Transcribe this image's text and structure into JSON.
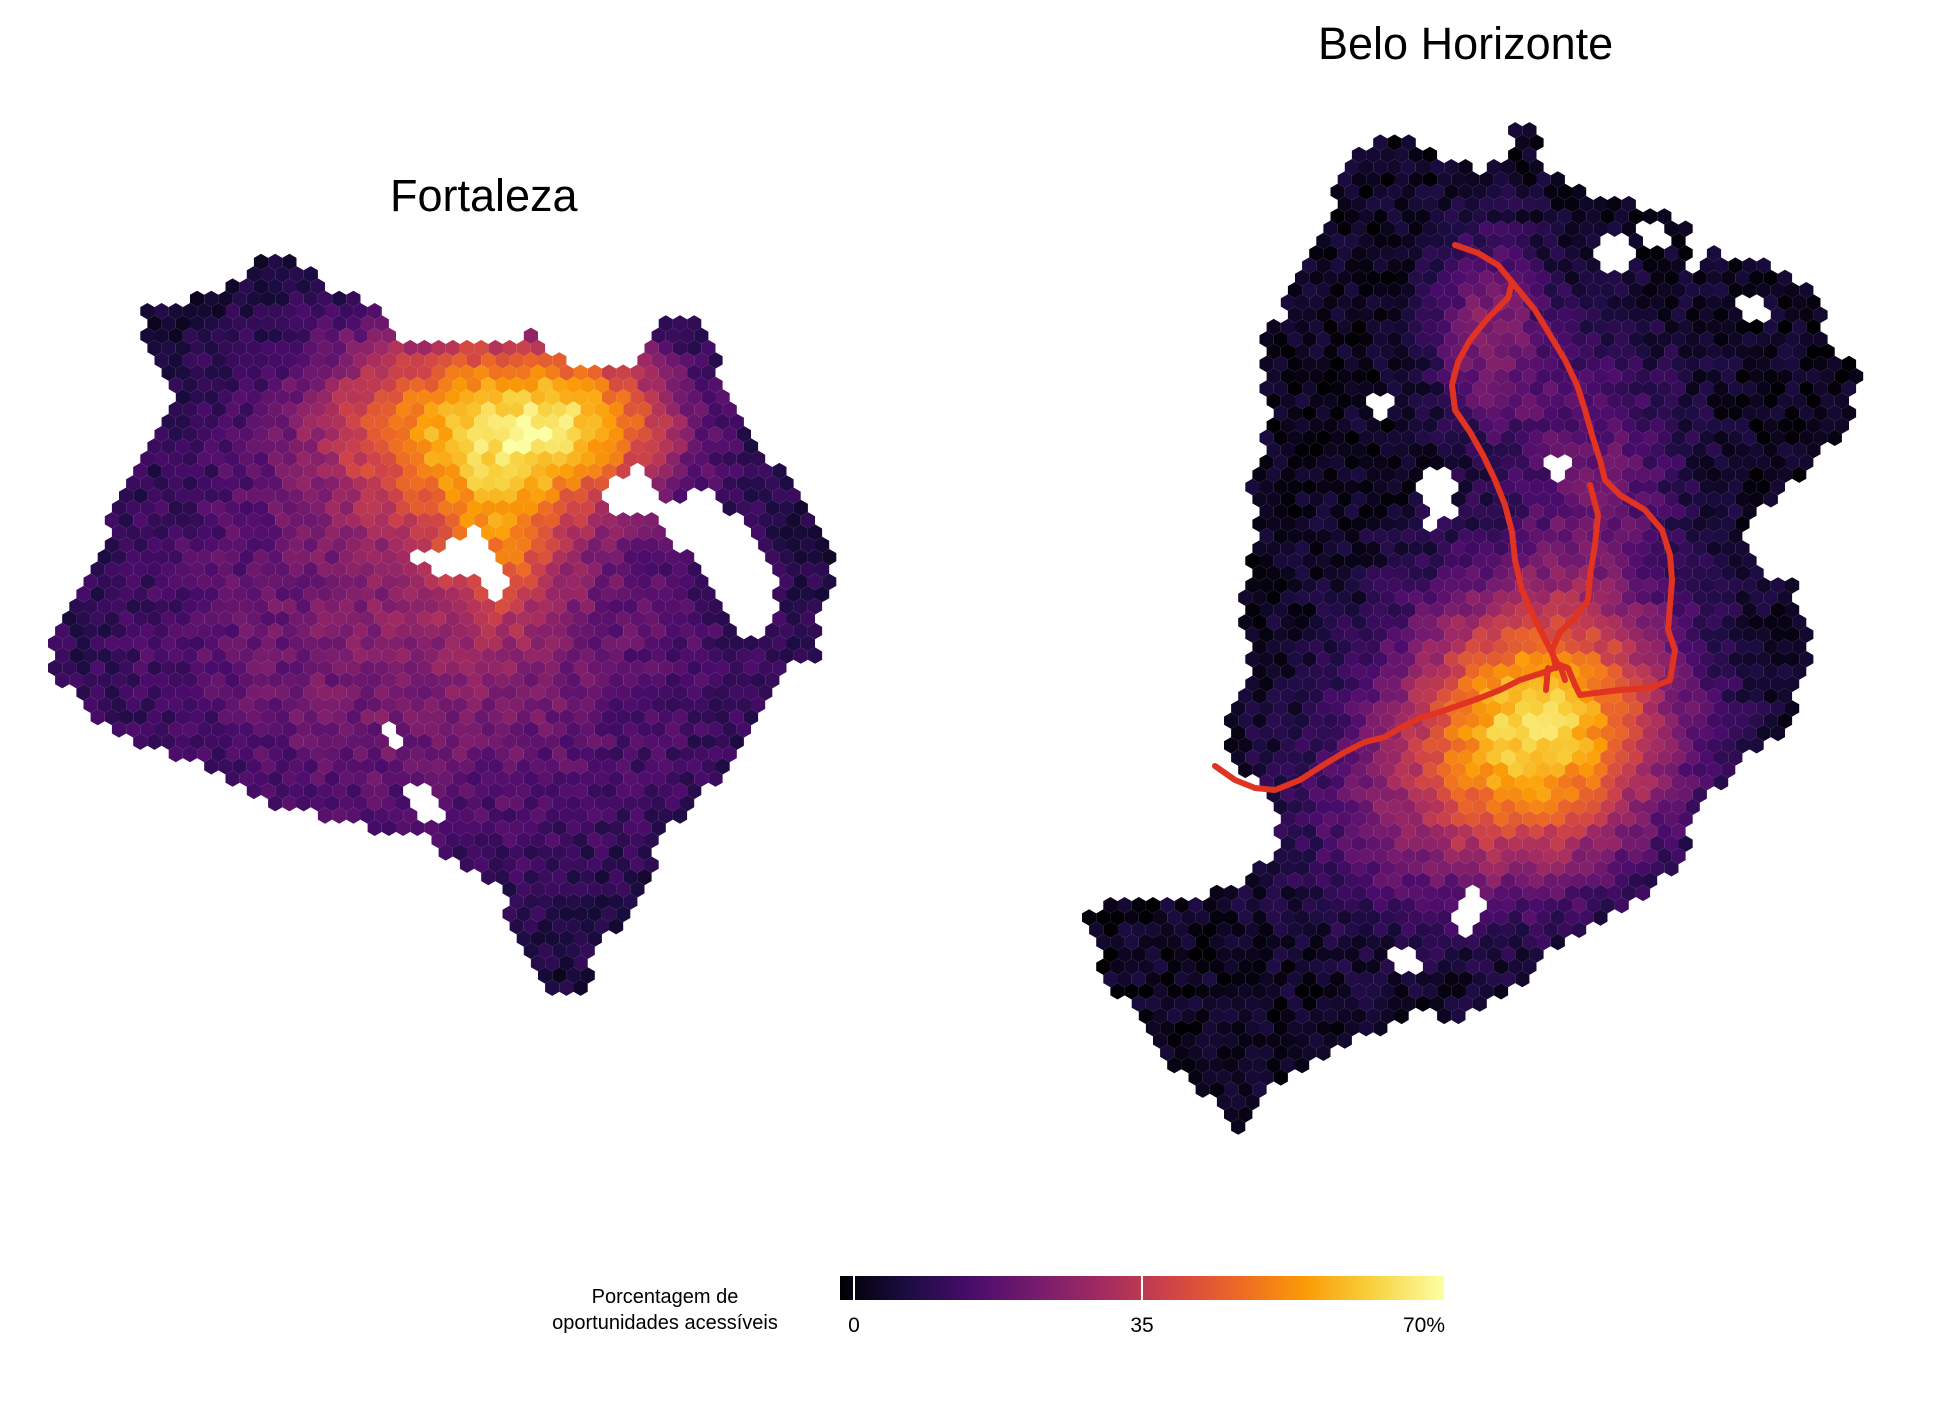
{
  "maps": [
    {
      "id": "fortaleza",
      "title": "Fortaleza"
    },
    {
      "id": "belo-horizonte",
      "title": "Belo Horizonte"
    }
  ],
  "legend": {
    "title_line1": "Porcentagem de",
    "title_line2": "oportunidades acessíveis",
    "ticks": [
      "0",
      "35",
      "70%"
    ],
    "min": 0,
    "max": 70,
    "colormap": [
      "#000004",
      "#1b0c41",
      "#4a0c6b",
      "#781c6d",
      "#a52c60",
      "#cf4446",
      "#ed6925",
      "#fb9b06",
      "#f7d13d",
      "#fcffa4"
    ]
  },
  "colors": {
    "rail_line": "#e03321",
    "background": "#ffffff"
  }
}
